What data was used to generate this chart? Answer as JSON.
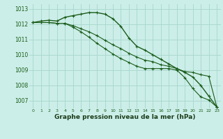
{
  "title": "Graphe pression niveau de la mer (hPa)",
  "background_color": "#cceee8",
  "grid_color": "#aad8d0",
  "line_color": "#1a5c1a",
  "x": [
    0,
    1,
    2,
    3,
    4,
    5,
    6,
    7,
    8,
    9,
    10,
    11,
    12,
    13,
    14,
    15,
    16,
    17,
    18,
    19,
    20,
    21,
    22,
    23
  ],
  "series1": [
    1012.1,
    1012.2,
    1012.25,
    1012.2,
    1012.45,
    1012.55,
    1012.65,
    1012.75,
    1012.75,
    1012.65,
    1012.35,
    1011.85,
    1011.1,
    1010.55,
    1010.3,
    1010.0,
    1009.7,
    1009.4,
    1009.1,
    1008.85,
    1008.55,
    1008.0,
    1007.3,
    1006.6
  ],
  "series2": [
    1012.1,
    1012.1,
    1012.1,
    1012.05,
    1012.05,
    1011.9,
    1011.7,
    1011.5,
    1011.25,
    1010.95,
    1010.65,
    1010.4,
    1010.1,
    1009.85,
    1009.65,
    1009.55,
    1009.35,
    1009.25,
    1009.1,
    1008.9,
    1008.85,
    1008.7,
    1008.6,
    1006.6
  ],
  "series3": [
    1012.1,
    1012.1,
    1012.1,
    1012.05,
    1012.05,
    1011.8,
    1011.5,
    1011.15,
    1010.75,
    1010.4,
    1010.05,
    1009.75,
    1009.5,
    1009.25,
    1009.1,
    1009.1,
    1009.1,
    1009.1,
    1009.0,
    1008.5,
    1007.8,
    1007.25,
    1007.05,
    1006.6
  ],
  "ylim_min": 1006.5,
  "ylim_max": 1013.3,
  "yticks": [
    1007,
    1008,
    1009,
    1010,
    1011,
    1012,
    1013
  ],
  "xticks": [
    0,
    1,
    2,
    3,
    4,
    5,
    6,
    7,
    8,
    9,
    10,
    11,
    12,
    13,
    14,
    15,
    16,
    17,
    18,
    19,
    20,
    21,
    22,
    23
  ]
}
